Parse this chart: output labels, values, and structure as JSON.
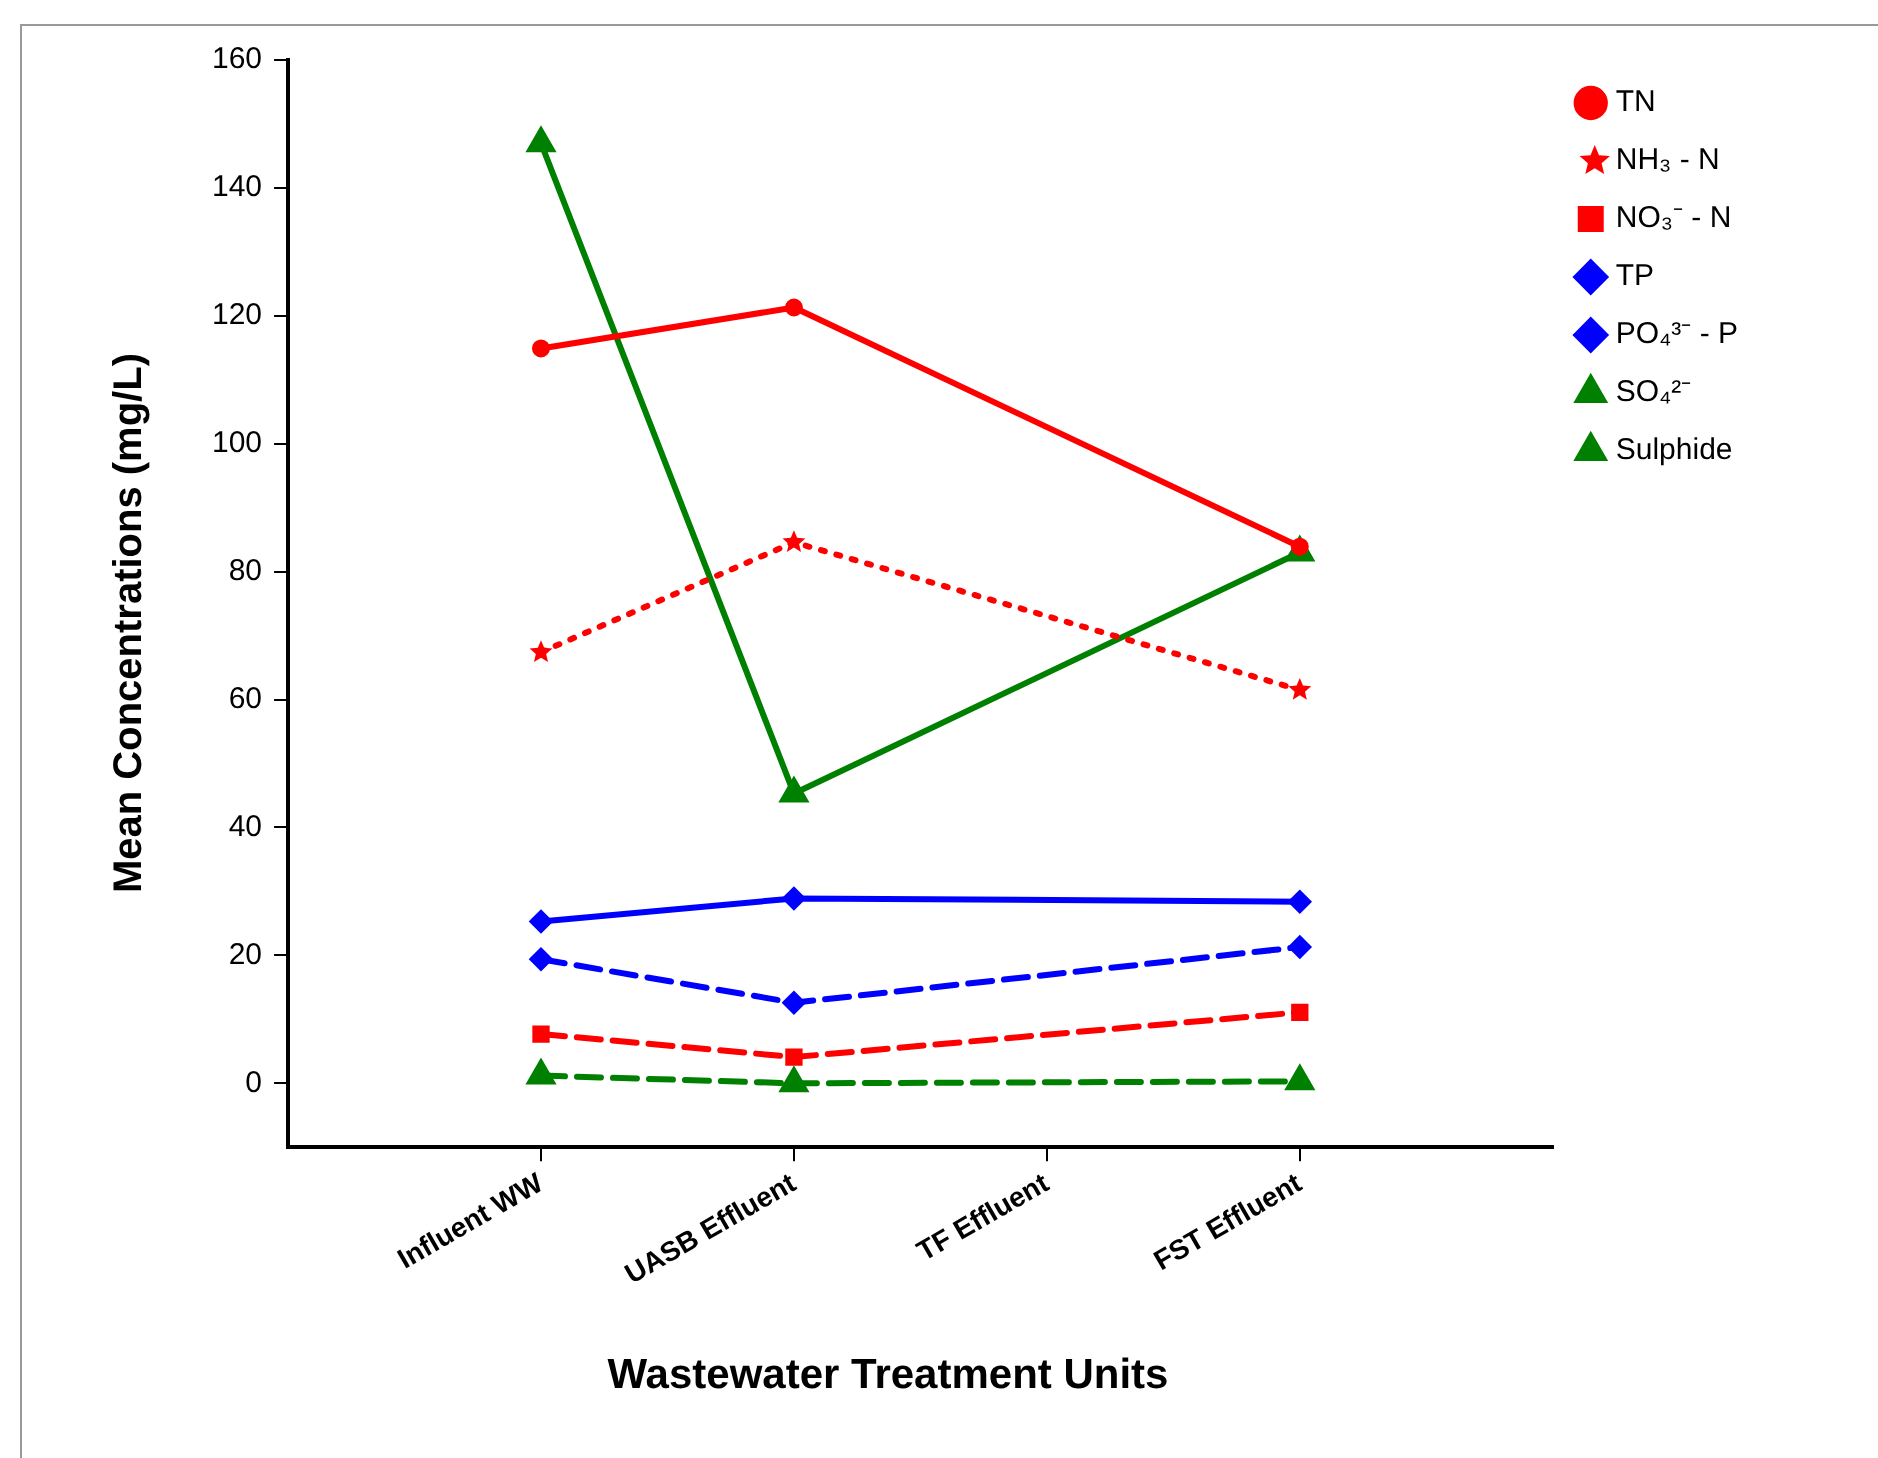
{
  "chart_data": {
    "type": "line",
    "xlabel": "Wastewater Treatment Units",
    "ylabel": "Mean Concentrations (mg/L)",
    "categories": [
      "Influent WW",
      "UASB Effluent",
      "TF Effluent",
      "FST Effluent"
    ],
    "ylim": [
      -10,
      160
    ],
    "yticks": [
      0,
      20,
      40,
      60,
      80,
      100,
      120,
      140,
      160
    ],
    "grid": false,
    "legend": "top right",
    "series": [
      {
        "name": "TN",
        "color": "#ff0000",
        "values": [
          114.9,
          121.3,
          null,
          83.9
        ],
        "line_style": "solid",
        "marker": "circle"
      },
      {
        "name": "NH₃ - N",
        "color": "#ff0000",
        "values": [
          67.4,
          84.6,
          null,
          61.5
        ],
        "line_style": "dotted",
        "marker": "star"
      },
      {
        "name": "NO₃⁻ - N",
        "color": "#ff0000",
        "values": [
          7.7,
          4.1,
          null,
          11.1
        ],
        "line_style": "dashed",
        "marker": "square"
      },
      {
        "name": "TP",
        "color": "#0000ff",
        "values": [
          25.3,
          28.9,
          null,
          28.4
        ],
        "line_style": "solid",
        "marker": "diamond"
      },
      {
        "name": "PO₄³⁻ - P",
        "color": "#0000ff",
        "values": [
          19.4,
          12.6,
          null,
          21.3
        ],
        "line_style": "dashed",
        "marker": "diamond"
      },
      {
        "name": "SO₄²⁻",
        "color": "#008000",
        "values": [
          147,
          45.3,
          null,
          83
        ],
        "line_style": "solid",
        "marker": "triangle"
      },
      {
        "name": "Sulphide",
        "color": "#008000",
        "values": [
          1.2,
          0,
          null,
          0.3
        ],
        "line_style": "dashed",
        "marker": "triangle"
      }
    ]
  }
}
